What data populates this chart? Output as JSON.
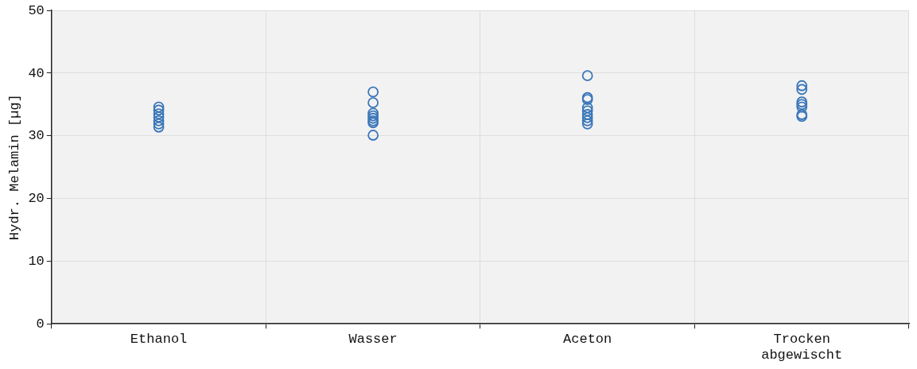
{
  "chart_data": {
    "type": "scatter",
    "ylabel": "Hydr. Melamin [µg]",
    "categories": [
      "Ethanol",
      "Wasser",
      "Aceton",
      "Trocken abgewischt"
    ],
    "series": [
      {
        "color": "#3a76b9",
        "x": [
          "Ethanol",
          "Ethanol",
          "Ethanol",
          "Ethanol",
          "Ethanol",
          "Ethanol",
          "Ethanol",
          "Wasser",
          "Wasser",
          "Wasser",
          "Wasser",
          "Wasser",
          "Wasser",
          "Wasser",
          "Wasser",
          "Aceton",
          "Aceton",
          "Aceton",
          "Aceton",
          "Aceton",
          "Aceton",
          "Aceton",
          "Aceton",
          "Aceton",
          "Trocken abgewischt",
          "Trocken abgewischt",
          "Trocken abgewischt",
          "Trocken abgewischt",
          "Trocken abgewischt",
          "Trocken abgewischt",
          "Trocken abgewischt"
        ],
        "values": [
          34.6,
          34.1,
          33.5,
          33.0,
          32.4,
          31.9,
          31.4,
          37.0,
          35.3,
          33.6,
          33.2,
          32.8,
          32.4,
          32.1,
          30.1,
          39.6,
          36.1,
          35.8,
          34.5,
          34.0,
          33.4,
          32.9,
          32.4,
          31.9,
          38.0,
          37.4,
          35.4,
          35.0,
          34.6,
          33.4,
          33.1
        ]
      }
    ],
    "ylim": [
      0,
      50
    ],
    "yticks": [
      0,
      10,
      20,
      30,
      40,
      50
    ],
    "grid": true,
    "marker": "circle",
    "legend": false
  }
}
